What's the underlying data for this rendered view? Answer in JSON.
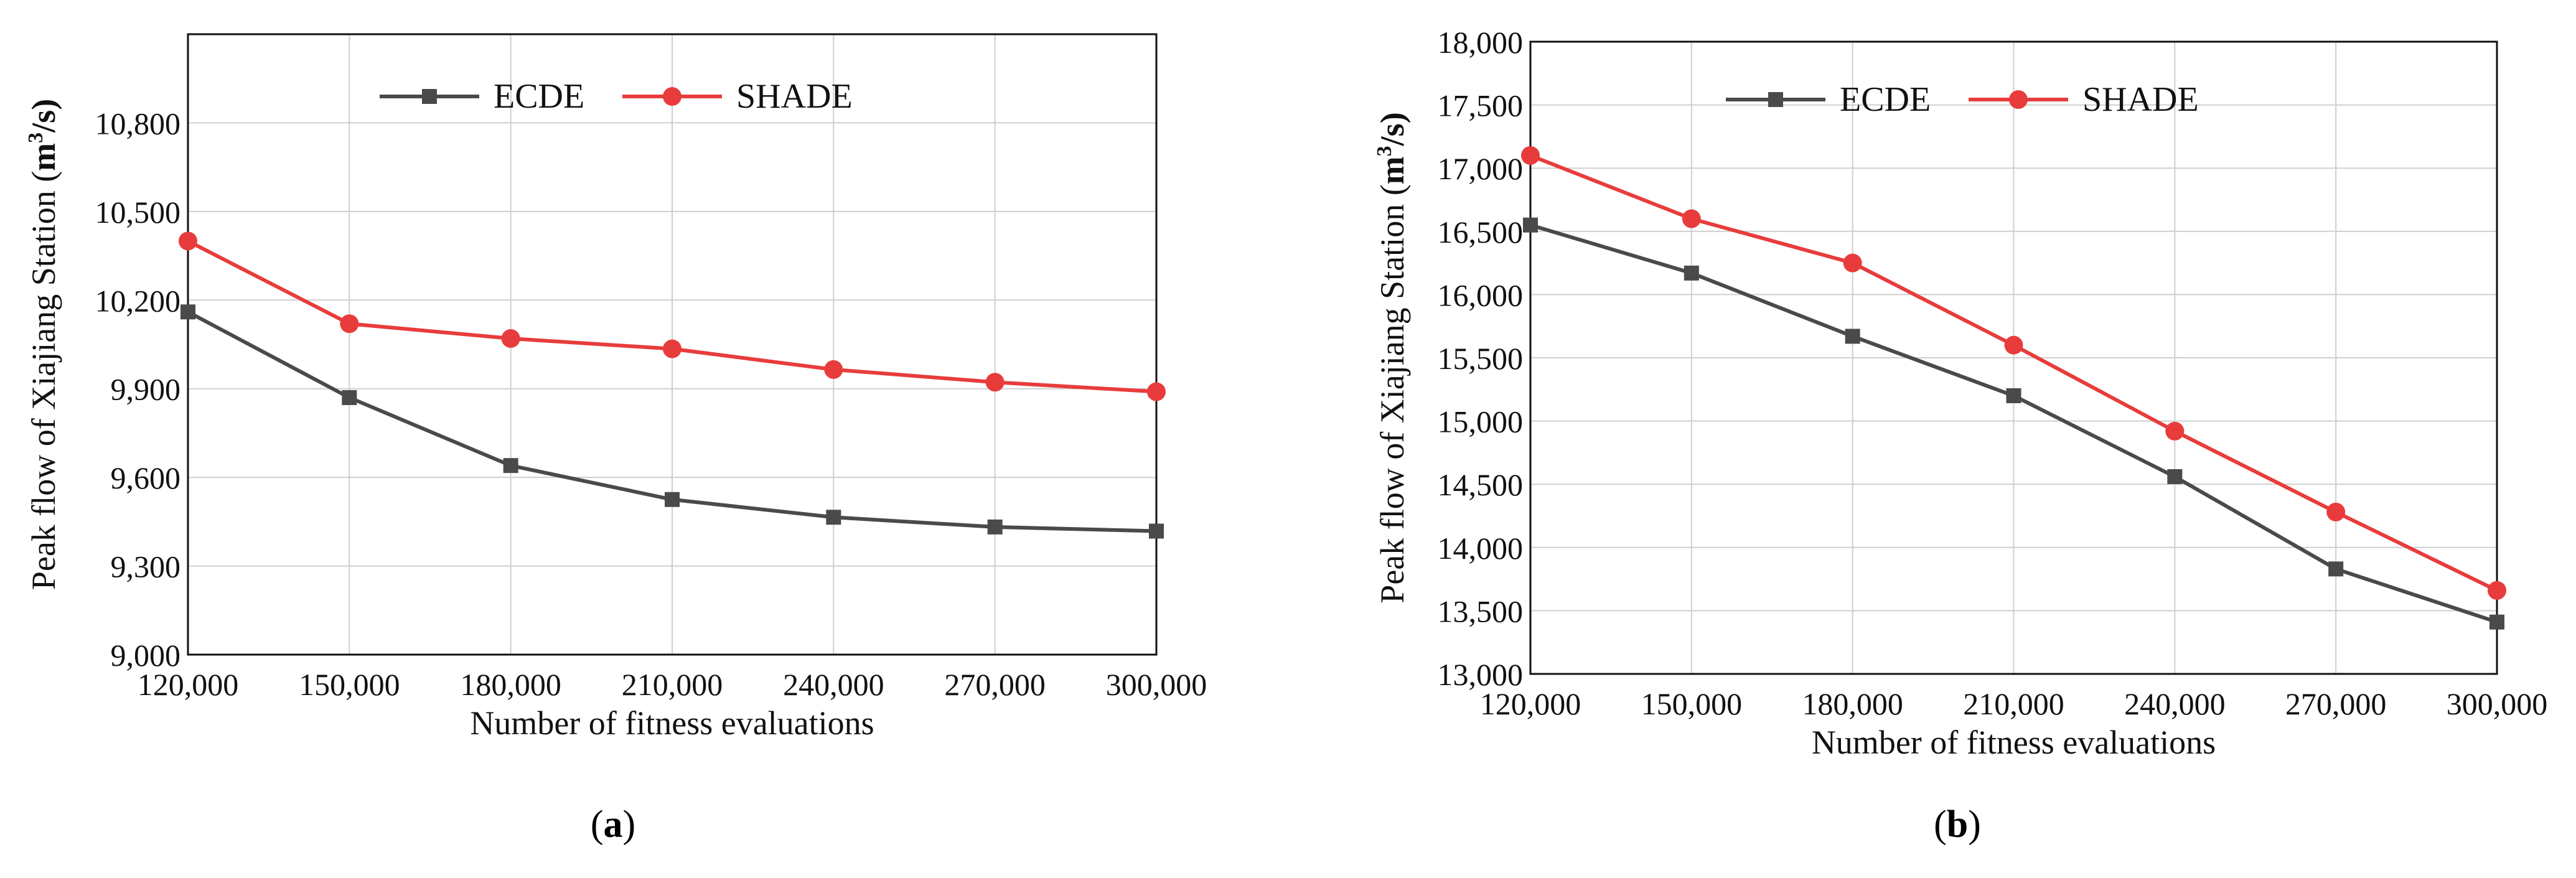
{
  "panels": {
    "a": {
      "label_open": "(",
      "label_letter": "a",
      "label_close": ")"
    },
    "b": {
      "label_open": "(",
      "label_letter": "b",
      "label_close": ")"
    }
  },
  "colors": {
    "ECDE": "#4a4a4a",
    "SHADE": "#e83c3c",
    "grid": "#cfcfcf"
  },
  "chart_data": [
    {
      "id": "a",
      "type": "line",
      "xlabel": "Number of fitness evaluations",
      "ylabel_prefix": "Peak flow of Xiajiang Station (",
      "ylabel_unit": "m",
      "ylabel_sup": "3",
      "ylabel_suffix": "/s)",
      "x": [
        120000,
        150000,
        180000,
        210000,
        240000,
        270000,
        300000
      ],
      "xticks": [
        "120,000",
        "150,000",
        "180,000",
        "210,000",
        "240,000",
        "270,000",
        "300,000"
      ],
      "yticks": [
        "9,000",
        "9,300",
        "9,600",
        "9,900",
        "10,200",
        "10,500",
        "10,800"
      ],
      "ytick_values": [
        9000,
        9300,
        9600,
        9900,
        10200,
        10500,
        10800
      ],
      "xlim": [
        120000,
        300000
      ],
      "ylim": [
        9000,
        11100
      ],
      "grid": true,
      "legend_position": "top-center",
      "series": [
        {
          "name": "ECDE",
          "marker": "square",
          "values": [
            10160,
            9870,
            9640,
            9525,
            9465,
            9432,
            9418
          ]
        },
        {
          "name": "SHADE",
          "marker": "circle",
          "values": [
            10400,
            10120,
            10070,
            10035,
            9965,
            9922,
            9890
          ]
        }
      ]
    },
    {
      "id": "b",
      "type": "line",
      "xlabel": "Number of fitness evaluations",
      "ylabel_prefix": "Peak flow of Xiajiang Station (",
      "ylabel_unit": "m",
      "ylabel_sup": "3",
      "ylabel_suffix": "/s)",
      "x": [
        120000,
        150000,
        180000,
        210000,
        240000,
        270000,
        300000
      ],
      "xticks": [
        "120,000",
        "150,000",
        "180,000",
        "210,000",
        "240,000",
        "270,000",
        "300,000"
      ],
      "yticks": [
        "13,000",
        "13,500",
        "14,000",
        "14,500",
        "15,000",
        "15,500",
        "16,000",
        "16,500",
        "17,000",
        "17,500",
        "18,000"
      ],
      "ytick_values": [
        13000,
        13500,
        14000,
        14500,
        15000,
        15500,
        16000,
        16500,
        17000,
        17500,
        18000
      ],
      "xlim": [
        120000,
        300000
      ],
      "ylim": [
        13000,
        18000
      ],
      "grid": true,
      "legend_position": "top-center",
      "series": [
        {
          "name": "ECDE",
          "marker": "square",
          "values": [
            16550,
            16170,
            15670,
            15200,
            14560,
            13830,
            13410
          ]
        },
        {
          "name": "SHADE",
          "marker": "circle",
          "values": [
            17100,
            16600,
            16250,
            15600,
            14920,
            14280,
            13660
          ]
        }
      ]
    }
  ]
}
